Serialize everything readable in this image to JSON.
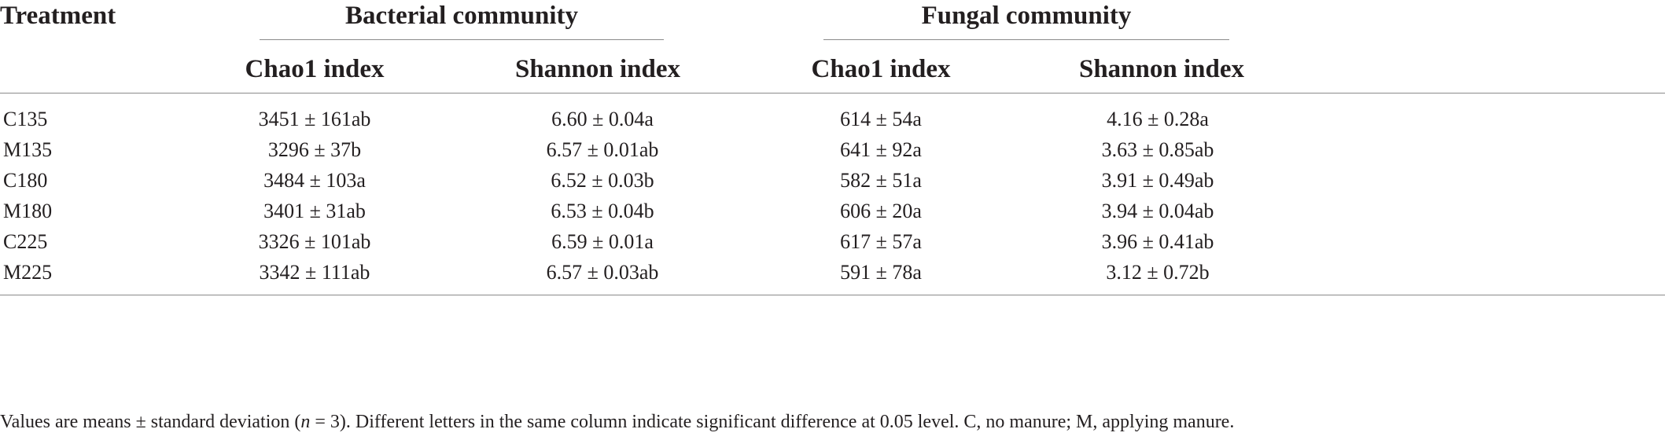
{
  "table": {
    "header": {
      "treatment": "Treatment",
      "groups": [
        "Bacterial community",
        "Fungal community"
      ],
      "subcolumns": [
        "Chao1 index",
        "Shannon index",
        "Chao1 index",
        "Shannon index"
      ]
    },
    "rows": [
      {
        "treatment": "C135",
        "values": [
          "3451 ± 161ab",
          "6.60 ± 0.04a",
          "614 ± 54a",
          "4.16 ± 0.28a"
        ]
      },
      {
        "treatment": "M135",
        "values": [
          "3296 ± 37b",
          "6.57 ± 0.01ab",
          "641 ± 92a",
          "3.63 ± 0.85ab"
        ]
      },
      {
        "treatment": "C180",
        "values": [
          "3484 ± 103a",
          "6.52 ± 0.03b",
          "582 ± 51a",
          "3.91 ± 0.49ab"
        ]
      },
      {
        "treatment": "M180",
        "values": [
          "3401 ± 31ab",
          "6.53 ± 0.04b",
          "606 ± 20a",
          "3.94 ± 0.04ab"
        ]
      },
      {
        "treatment": "C225",
        "values": [
          "3326 ± 101ab",
          "6.59 ± 0.01a",
          "617 ± 57a",
          "3.96 ± 0.41ab"
        ]
      },
      {
        "treatment": "M225",
        "values": [
          "3342 ± 111ab",
          "6.57 ± 0.03ab",
          "591 ± 78a",
          "3.12 ± 0.72b"
        ]
      }
    ],
    "footnote": {
      "before": "Values are means ± standard deviation (",
      "n_symbol": "n",
      "after": " = 3). Different letters in the same column indicate significant difference at 0.05 level. C, no manure; M, applying manure."
    }
  }
}
